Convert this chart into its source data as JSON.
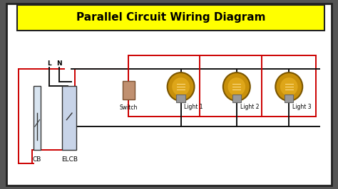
{
  "title": "Parallel Circuit Wiring Diagram",
  "title_color": "#000000",
  "title_bg": "#FFFF00",
  "title_fontsize": 11,
  "bg_color": "#FFFFFF",
  "outer_bg": "#555555",
  "wire_red": "#CC0000",
  "wire_black": "#111111",
  "labels": {
    "L": "L",
    "N": "N",
    "CB": "CB",
    "ELCB": "ELCB",
    "Switch": "Switch",
    "Light1": "Light 1",
    "Light2": "Light 2",
    "Light3": "Light 3"
  },
  "bulb_color": "#C8900A",
  "bulb_inner": "#E8B020",
  "bulb_outline": "#7A5500",
  "switch_color": "#C09070",
  "cb_color": "#D8E4F0",
  "elcb_color": "#C8D4E8",
  "lw": 1.4
}
